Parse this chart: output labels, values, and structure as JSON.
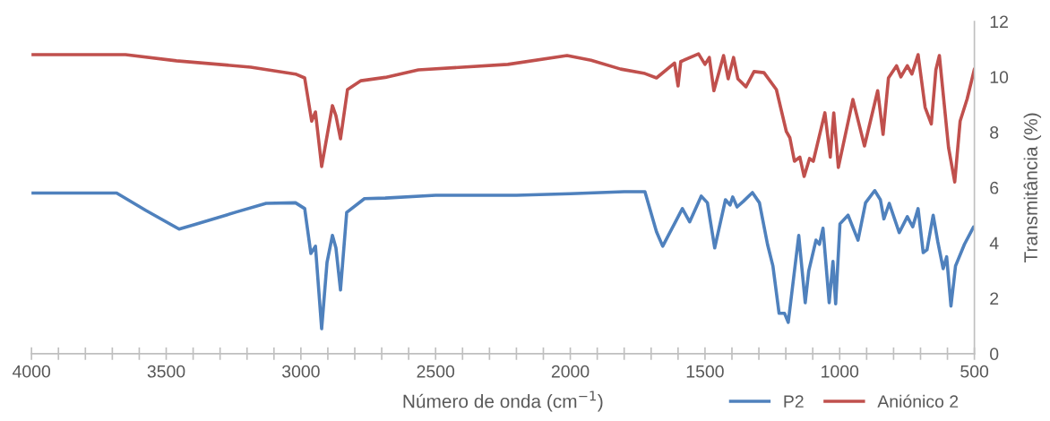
{
  "chart_data": {
    "type": "line",
    "xlabel": "Número de onda (cm$^{−1}$)",
    "ylabel": "Transmitância (%)",
    "xlim": [
      4000,
      500
    ],
    "ylim": [
      0,
      12
    ],
    "xticks": [
      4000,
      {
        "value": 3900,
        "label": null
      },
      {
        "value": 3800,
        "label": null
      },
      {
        "value": 3700,
        "label": null
      },
      {
        "value": 3600,
        "label": null
      },
      3500,
      {
        "value": 3400,
        "label": null
      },
      {
        "value": 3300,
        "label": null
      },
      {
        "value": 3200,
        "label": null
      },
      {
        "value": 3100,
        "label": null
      },
      3000,
      {
        "value": 2900,
        "label": null
      },
      {
        "value": 2800,
        "label": null
      },
      {
        "value": 2700,
        "label": null
      },
      {
        "value": 2600,
        "label": null
      },
      2500,
      {
        "value": 2400,
        "label": null
      },
      {
        "value": 2300,
        "label": null
      },
      {
        "value": 2200,
        "label": null
      },
      {
        "value": 2100,
        "label": null
      },
      2000,
      {
        "value": 1900,
        "label": null
      },
      {
        "value": 1800,
        "label": null
      },
      {
        "value": 1700,
        "label": null
      },
      {
        "value": 1600,
        "label": null
      },
      1500,
      {
        "value": 1400,
        "label": null
      },
      {
        "value": 1300,
        "label": null
      },
      {
        "value": 1200,
        "label": null
      },
      {
        "value": 1100,
        "label": null
      },
      1000,
      {
        "value": 900,
        "label": null
      },
      {
        "value": 800,
        "label": null
      },
      {
        "value": 700,
        "label": null
      },
      {
        "value": 600,
        "label": null
      },
      500
    ],
    "yticks": [
      0,
      2,
      4,
      6,
      8,
      10,
      12
    ],
    "grid": false,
    "legend": "bottom right",
    "marker": "none",
    "line_style": "solid",
    "series": [
      {
        "name": "P2",
        "color": "#4f81bd",
        "x": [
          4000,
          3684,
          3575,
          3452,
          3395,
          3242,
          3129,
          3020,
          2986,
          2963,
          2946,
          2923,
          2903,
          2883,
          2870,
          2853,
          2830,
          2764,
          2687,
          2500,
          2200,
          2000,
          1800,
          1723,
          1680,
          1657,
          1613,
          1584,
          1557,
          1514,
          1491,
          1464,
          1424,
          1407,
          1397,
          1381,
          1358,
          1324,
          1298,
          1268,
          1248,
          1225,
          1205,
          1191,
          1152,
          1128,
          1115,
          1088,
          1075,
          1062,
          1039,
          1025,
          1015,
          999,
          969,
          932,
          904,
          870,
          849,
          836,
          816,
          779,
          749,
          729,
          709,
          690,
          676,
          653,
          636,
          616,
          603,
          587,
          570,
          537,
          503
        ],
        "values": [
          5.8,
          5.8,
          5.17,
          4.5,
          4.66,
          5.11,
          5.43,
          5.45,
          5.24,
          3.62,
          3.88,
          0.9,
          3.3,
          4.27,
          3.82,
          2.3,
          5.1,
          5.6,
          5.62,
          5.72,
          5.72,
          5.78,
          5.85,
          5.85,
          4.4,
          3.88,
          4.7,
          5.24,
          4.76,
          5.69,
          5.45,
          3.82,
          5.56,
          5.37,
          5.66,
          5.3,
          5.5,
          5.82,
          5.45,
          3.95,
          3.17,
          1.46,
          1.46,
          1.13,
          4.27,
          1.84,
          2.98,
          4.1,
          3.95,
          4.53,
          1.84,
          3.33,
          1.8,
          4.69,
          5.0,
          4.1,
          5.45,
          5.89,
          5.56,
          4.87,
          5.43,
          4.37,
          4.95,
          4.58,
          5.24,
          3.65,
          3.75,
          5.0,
          4.05,
          3.07,
          3.5,
          1.72,
          3.17,
          3.95,
          4.58
        ]
      },
      {
        "name": "Aniónico 2",
        "color": "#c0504d",
        "x": [
          4000,
          3651,
          3462,
          3186,
          3020,
          2986,
          2960,
          2946,
          2923,
          2883,
          2870,
          2853,
          2827,
          2777,
          2687,
          2564,
          2232,
          2012,
          1923,
          1813,
          1723,
          1680,
          1613,
          1600,
          1590,
          1524,
          1500,
          1484,
          1467,
          1431,
          1414,
          1394,
          1378,
          1348,
          1318,
          1281,
          1235,
          1198,
          1185,
          1168,
          1148,
          1132,
          1112,
          1098,
          1055,
          1035,
          1022,
          1005,
          951,
          908,
          859,
          839,
          819,
          789,
          773,
          749,
          732,
          709,
          683,
          660,
          643,
          630,
          596,
          573,
          553,
          527,
          500
        ],
        "values": [
          10.8,
          10.8,
          10.58,
          10.35,
          10.1,
          9.96,
          8.4,
          8.73,
          6.76,
          8.96,
          8.6,
          7.76,
          9.54,
          9.86,
          9.98,
          10.25,
          10.45,
          10.77,
          10.6,
          10.28,
          10.12,
          9.96,
          10.5,
          9.67,
          10.55,
          10.83,
          10.45,
          10.7,
          9.5,
          10.77,
          9.93,
          10.7,
          9.93,
          9.64,
          10.19,
          10.15,
          9.54,
          8.02,
          7.8,
          6.95,
          7.1,
          6.4,
          7.05,
          6.95,
          8.7,
          7.1,
          8.7,
          6.73,
          9.18,
          7.5,
          9.5,
          7.92,
          9.96,
          10.4,
          10.0,
          10.4,
          10.1,
          10.8,
          8.9,
          8.3,
          10.25,
          10.77,
          7.45,
          6.2,
          8.4,
          9.2,
          10.28
        ]
      }
    ]
  }
}
